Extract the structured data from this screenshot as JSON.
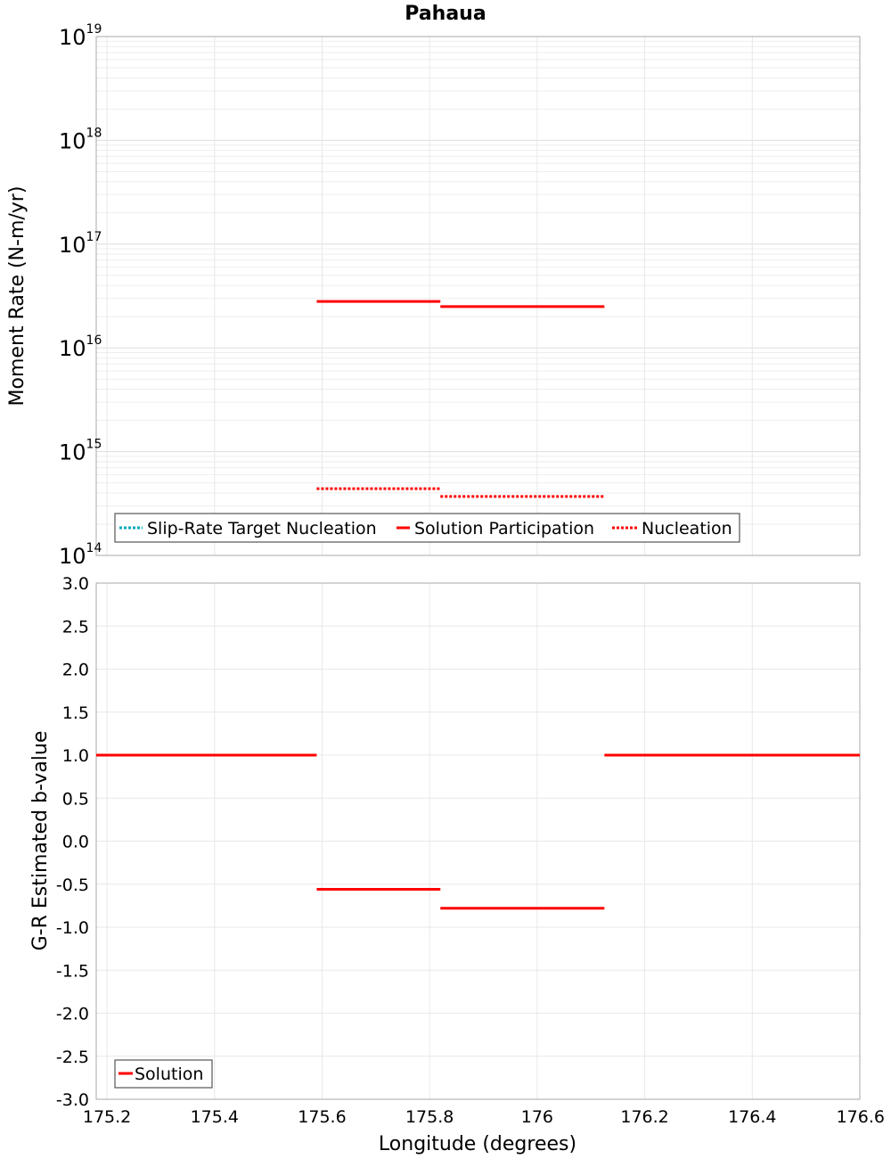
{
  "chart_data": [
    {
      "type": "line",
      "title": "Pahaua",
      "xlabel": "Longitude (degrees)",
      "ylabel": "Moment Rate (N-m/yr)",
      "yscale": "log",
      "xlim": [
        175.18,
        176.6
      ],
      "ylim": [
        100000000000000.0,
        1e+19
      ],
      "y_ticks": [
        {
          "base": "10",
          "exp": "14"
        },
        {
          "base": "10",
          "exp": "15"
        },
        {
          "base": "10",
          "exp": "16"
        },
        {
          "base": "10",
          "exp": "17"
        },
        {
          "base": "10",
          "exp": "18"
        },
        {
          "base": "10",
          "exp": "19"
        }
      ],
      "legend": {
        "placement": "bottom-left",
        "entries": [
          "Slip-Rate Target Nucleation",
          "Solution Participation",
          "Nucleation"
        ]
      },
      "series": [
        {
          "name": "Slip-Rate Target Nucleation",
          "color": "#00aabb",
          "dash": true,
          "segments": []
        },
        {
          "name": "Solution Participation",
          "color": "#ff0000",
          "dash": false,
          "segments": [
            {
              "x0": 175.59,
              "x1": 175.82,
              "y": 2.8e+16
            },
            {
              "x0": 175.82,
              "x1": 176.125,
              "y": 2.5e+16
            }
          ]
        },
        {
          "name": "Nucleation",
          "color": "#ff0000",
          "dash": true,
          "segments": [
            {
              "x0": 175.59,
              "x1": 175.82,
              "y": 440000000000000.0
            },
            {
              "x0": 175.82,
              "x1": 176.125,
              "y": 370000000000000.0
            }
          ]
        }
      ]
    },
    {
      "type": "line",
      "xlabel": "Longitude (degrees)",
      "ylabel": "G-R Estimated b-value",
      "xlim": [
        175.18,
        176.6
      ],
      "ylim": [
        -3.0,
        3.0
      ],
      "x_ticks": [
        "175.2",
        "175.4",
        "175.6",
        "175.8",
        "176",
        "176.2",
        "176.4",
        "176.6"
      ],
      "y_ticks": [
        "3.0",
        "2.5",
        "2.0",
        "1.5",
        "1.0",
        "0.5",
        "0.0",
        "-0.5",
        "-1.0",
        "-1.5",
        "-2.0",
        "-2.5",
        "-3.0"
      ],
      "legend": {
        "placement": "bottom-left",
        "entries": [
          "Solution"
        ]
      },
      "series": [
        {
          "name": "Solution",
          "color": "#ff0000",
          "dash": false,
          "segments": [
            {
              "x0": 175.18,
              "x1": 175.59,
              "y": 1.0
            },
            {
              "x0": 175.59,
              "x1": 175.82,
              "y": -0.56
            },
            {
              "x0": 175.82,
              "x1": 176.125,
              "y": -0.78
            },
            {
              "x0": 176.125,
              "x1": 176.6,
              "y": 1.0
            }
          ]
        }
      ]
    }
  ]
}
